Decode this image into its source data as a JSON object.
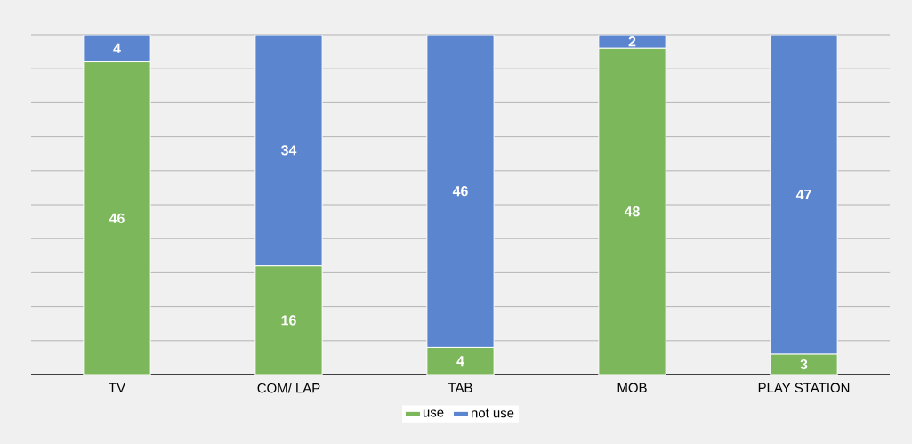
{
  "chart_data": {
    "type": "bar",
    "stacked": true,
    "categories": [
      "TV",
      "COM/ LAP",
      "TAB",
      "MOB",
      "PLAY STATION"
    ],
    "series": [
      {
        "name": "use",
        "color": "#7cb75c",
        "values": [
          46,
          16,
          4,
          48,
          3
        ]
      },
      {
        "name": "not use",
        "color": "#5b86cf",
        "values": [
          4,
          34,
          46,
          2,
          47
        ]
      }
    ],
    "grid": "y",
    "legend": "bottom",
    "data_labels": true,
    "tick_labels": "x"
  }
}
